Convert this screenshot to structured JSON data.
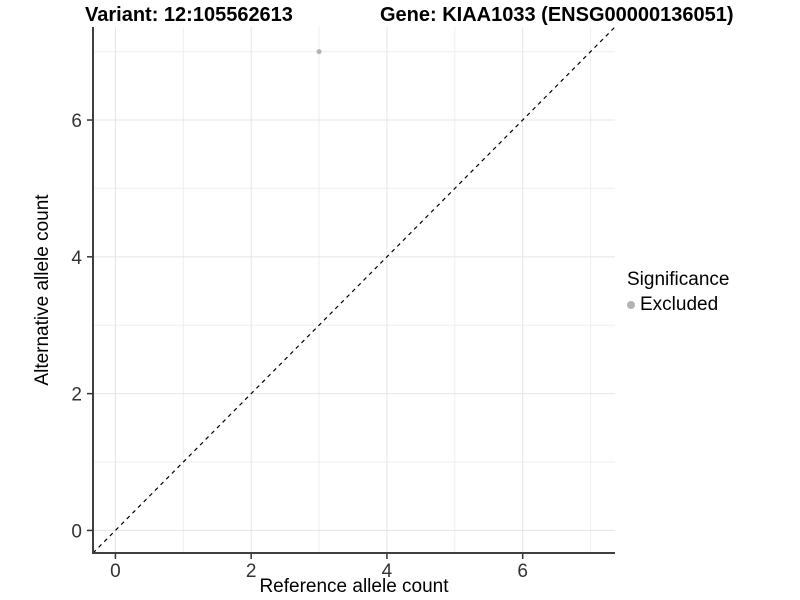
{
  "chart_data": {
    "type": "scatter",
    "title_variant": "Variant: 12:105562613",
    "title_gene": "Gene: KIAA1033 (ENSG00000136051)",
    "xlabel": "Reference allele count",
    "ylabel": "Alternative allele count",
    "xlim": [
      -0.33,
      7.36
    ],
    "ylim": [
      -0.33,
      7.36
    ],
    "x_ticks": [
      0,
      2,
      4,
      6
    ],
    "y_ticks": [
      0,
      2,
      4,
      6
    ],
    "x_minor_ticks": [
      1,
      3,
      5,
      7
    ],
    "y_minor_ticks": [
      1,
      3,
      5,
      7
    ],
    "grid": "major and minor, light grey on white",
    "points": [
      {
        "x": 3,
        "y": 7,
        "series": "Excluded"
      }
    ],
    "identity_line": {
      "slope": 1,
      "intercept": 0,
      "style": "dashed",
      "color": "#000000"
    },
    "series": [
      {
        "name": "Excluded",
        "color": "#b3b3b3"
      }
    ],
    "legend": {
      "title": "Significance",
      "position": "right",
      "items": [
        {
          "label": "Excluded",
          "color": "#b3b3b3"
        }
      ]
    },
    "style": {
      "grid_major_color": "#e4e4e4",
      "grid_minor_color": "#efefef",
      "axis_line_color": "#3f3f3f",
      "tick_mark_color": "#333333",
      "tick_label_color": "#333333",
      "point_radius": 2.5
    }
  }
}
